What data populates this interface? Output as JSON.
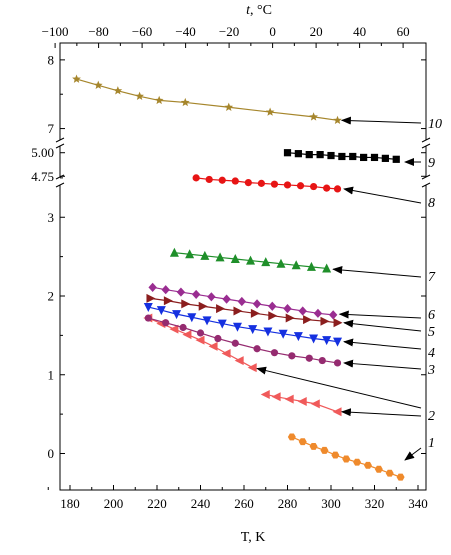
{
  "chart_data": {
    "type": "scatter",
    "xlabel": "T, K",
    "top_xlabel_var": "t",
    "top_xlabel_unit": ", °C",
    "xlim": [
      170,
      340
    ],
    "x_ticks": [
      180,
      200,
      220,
      240,
      260,
      280,
      300,
      320,
      340
    ],
    "top_x_ticks": [
      -100,
      -80,
      -60,
      -40,
      -20,
      0,
      20,
      40,
      60
    ],
    "y_ticks": [
      {
        "label": "8",
        "value": 8
      },
      {
        "label": "7",
        "value": 7
      },
      {
        "label": "5.00",
        "value": 5.0
      },
      {
        "label": "4.75",
        "value": 4.75
      },
      {
        "label": "3",
        "value": 3
      },
      {
        "label": "2",
        "value": 2
      },
      {
        "label": "1",
        "value": 1
      },
      {
        "label": "0",
        "value": 0
      }
    ],
    "y_axis_segments": [
      {
        "range": [
          -0.4,
          3.6
        ]
      },
      {
        "range": [
          4.7,
          5.05
        ]
      },
      {
        "range": [
          6.95,
          8.1
        ]
      }
    ],
    "series": [
      {
        "name": "1",
        "color": "#ef8a2c",
        "marker": "hexagon",
        "line": true,
        "x": [
          282,
          287,
          292,
          297,
          302,
          307,
          312,
          317,
          322,
          327,
          332
        ],
        "y": [
          0.21,
          0.15,
          0.09,
          0.04,
          -0.02,
          -0.07,
          -0.11,
          -0.15,
          -0.2,
          -0.25,
          -0.3
        ]
      },
      {
        "name": "2",
        "color": "#f05a5a",
        "marker": "triangle-left",
        "line": true,
        "segment": "a",
        "x": [
          216,
          222,
          228,
          234,
          240,
          246,
          252,
          258,
          264
        ],
        "y": [
          1.72,
          1.65,
          1.58,
          1.51,
          1.44,
          1.36,
          1.27,
          1.18,
          1.09
        ]
      },
      {
        "name": "2",
        "color": "#f05a5a",
        "marker": "triangle-left",
        "line": true,
        "segment": "b",
        "x": [
          270,
          275,
          281,
          287,
          293,
          303
        ],
        "y": [
          0.75,
          0.72,
          0.69,
          0.66,
          0.63,
          0.53
        ]
      },
      {
        "name": "3",
        "color": "#952b70",
        "marker": "circle",
        "line": true,
        "x": [
          216,
          224,
          232,
          240,
          248,
          256,
          266,
          274,
          282,
          290,
          296,
          303
        ],
        "y": [
          1.72,
          1.66,
          1.6,
          1.53,
          1.46,
          1.4,
          1.33,
          1.28,
          1.24,
          1.21,
          1.18,
          1.15
        ]
      },
      {
        "name": "4",
        "color": "#1530e0",
        "marker": "triangle-down",
        "line": true,
        "x": [
          216,
          222,
          229,
          236,
          243,
          250,
          257,
          264,
          271,
          278,
          285,
          292,
          298,
          303
        ],
        "y": [
          1.86,
          1.82,
          1.77,
          1.73,
          1.69,
          1.65,
          1.61,
          1.58,
          1.55,
          1.52,
          1.49,
          1.46,
          1.44,
          1.42
        ]
      },
      {
        "name": "5",
        "color": "#8b1e1e",
        "marker": "triangle-right",
        "line": true,
        "x": [
          217,
          225,
          233,
          241,
          249,
          257,
          265,
          273,
          281,
          289,
          297,
          303
        ],
        "y": [
          1.97,
          1.94,
          1.9,
          1.87,
          1.84,
          1.81,
          1.78,
          1.75,
          1.72,
          1.7,
          1.68,
          1.66
        ]
      },
      {
        "name": "6",
        "color": "#9a2d91",
        "marker": "diamond",
        "line": true,
        "x": [
          218,
          224,
          231,
          238,
          245,
          252,
          259,
          266,
          273,
          280,
          287,
          294,
          301
        ],
        "y": [
          2.11,
          2.08,
          2.05,
          2.02,
          1.99,
          1.96,
          1.93,
          1.9,
          1.87,
          1.84,
          1.81,
          1.78,
          1.76
        ]
      },
      {
        "name": "7",
        "color": "#1f8f2a",
        "marker": "triangle-up",
        "line": true,
        "x": [
          228,
          235,
          242,
          249,
          256,
          263,
          270,
          277,
          284,
          291,
          298
        ],
        "y": [
          2.55,
          2.53,
          2.51,
          2.49,
          2.47,
          2.45,
          2.43,
          2.41,
          2.39,
          2.37,
          2.35
        ]
      },
      {
        "name": "8",
        "color": "#e71414",
        "marker": "circle",
        "line": true,
        "x": [
          238,
          244,
          250,
          256,
          262,
          268,
          274,
          280,
          286,
          292,
          298,
          303
        ],
        "y": [
          3.5,
          3.48,
          3.47,
          3.46,
          3.44,
          3.43,
          3.42,
          3.41,
          3.4,
          3.39,
          3.37,
          3.36
        ]
      },
      {
        "name": "9",
        "color": "#000000",
        "marker": "square",
        "line": true,
        "x": [
          280,
          285,
          290,
          295,
          300,
          305,
          310,
          315,
          320,
          325,
          330
        ],
        "y": [
          5.0,
          4.99,
          4.98,
          4.98,
          4.97,
          4.96,
          4.96,
          4.95,
          4.95,
          4.94,
          4.93
        ]
      },
      {
        "name": "10",
        "color": "#a6862c",
        "marker": "star",
        "line": true,
        "x": [
          183,
          193,
          202,
          212,
          221,
          233,
          253,
          272,
          292,
          303
        ],
        "y": [
          7.72,
          7.63,
          7.55,
          7.47,
          7.41,
          7.38,
          7.31,
          7.24,
          7.17,
          7.12
        ]
      }
    ],
    "series_number_labels": [
      "1",
      "2",
      "3",
      "4",
      "5",
      "6",
      "7",
      "8",
      "9",
      "10"
    ]
  }
}
